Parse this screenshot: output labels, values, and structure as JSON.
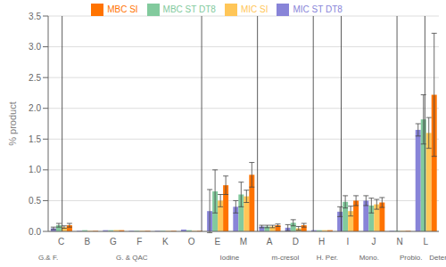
{
  "chart_data": {
    "type": "bar",
    "categories": [
      "C",
      "B",
      "G",
      "F",
      "K",
      "O",
      "E",
      "M",
      "A",
      "D",
      "H",
      "I",
      "J",
      "N",
      "L"
    ],
    "series": [
      {
        "name": "MIC ST DT8",
        "color": "#8884d8",
        "values": [
          0.05,
          0.01,
          0.02,
          0.01,
          0.01,
          0.03,
          0.33,
          0.4,
          0.08,
          0.06,
          0.02,
          0.32,
          0.5,
          0.01,
          1.65
        ],
        "errors": [
          0.02,
          0.0,
          0.0,
          0.0,
          0.0,
          0.0,
          0.35,
          0.1,
          0.02,
          0.05,
          0.0,
          0.08,
          0.08,
          0.0,
          0.1
        ]
      },
      {
        "name": "MBC ST DT8",
        "color": "#82ca9d",
        "values": [
          0.1,
          0.02,
          0.02,
          0.01,
          0.01,
          0.02,
          0.65,
          0.6,
          0.08,
          0.14,
          0.02,
          0.48,
          0.42,
          0.01,
          1.82
        ],
        "errors": [
          0.03,
          0.0,
          0.0,
          0.0,
          0.0,
          0.0,
          0.35,
          0.2,
          0.02,
          0.05,
          0.0,
          0.1,
          0.12,
          0.0,
          0.4
        ]
      },
      {
        "name": "MIC SI",
        "color": "#ffc658",
        "values": [
          0.07,
          0.01,
          0.02,
          0.01,
          0.01,
          0.01,
          0.5,
          0.57,
          0.08,
          0.05,
          0.02,
          0.33,
          0.44,
          0.01,
          1.6
        ],
        "errors": [
          0.02,
          0.0,
          0.0,
          0.0,
          0.0,
          0.0,
          0.1,
          0.1,
          0.02,
          0.03,
          0.0,
          0.08,
          0.08,
          0.0,
          0.25
        ]
      },
      {
        "name": "MBC SI",
        "color": "#ff7300",
        "values": [
          0.1,
          0.01,
          0.02,
          0.01,
          0.01,
          0.01,
          0.75,
          0.92,
          0.1,
          0.1,
          0.02,
          0.5,
          0.47,
          0.01,
          2.22
        ],
        "errors": [
          0.03,
          0.0,
          0.0,
          0.0,
          0.0,
          0.0,
          0.15,
          0.2,
          0.02,
          0.03,
          0.0,
          0.08,
          0.08,
          0.0,
          1.0
        ]
      }
    ],
    "ylabel": "% product",
    "ylim": [
      0,
      3.5
    ],
    "yticks": [
      {
        "value": 0,
        "label": "0.0"
      },
      0.5,
      {
        "value": 1,
        "label": "1.0"
      },
      1.5,
      {
        "value": 2,
        "label": "2.0"
      },
      2.5,
      {
        "value": 3,
        "label": "3.0"
      },
      3.5
    ],
    "grid": true,
    "legend": "top",
    "annotations": [
      {
        "text": "G.& F.",
        "categories": [
          "C"
        ]
      },
      {
        "text": "G. & QAC",
        "categories": [
          "B",
          "G",
          "F",
          "K",
          "O"
        ]
      },
      {
        "text": "Iodine",
        "categories": [
          "E",
          "M"
        ]
      },
      {
        "text": "m-cresol",
        "categories": [
          "A",
          "D"
        ]
      },
      {
        "text": "H. Per.",
        "categories": [
          "H"
        ]
      },
      {
        "text": "Mono.",
        "categories": [
          "I",
          "J"
        ]
      },
      {
        "text": "Probio.",
        "categories": [
          "N"
        ]
      },
      {
        "text": "Deter.",
        "categories": [
          "L"
        ]
      }
    ]
  }
}
